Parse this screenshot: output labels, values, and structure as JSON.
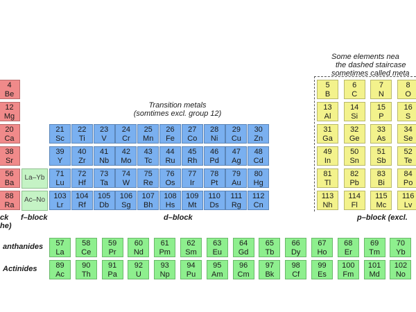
{
  "labels": {
    "transition_line1": "Transition metals",
    "transition_line2": "(somtimes excl. group 12)",
    "metalloid_line1": "Some elements nea",
    "metalloid_line2": "the dashed staircase",
    "metalloid_line3": "sometimes called meta",
    "block_s_line1": "ck",
    "block_s_line2": "he)",
    "block_f": "f–block",
    "block_d": "d–block",
    "block_p": "p–block (excl.",
    "lanthanides": "anthanides",
    "actinides": "Actinides",
    "ref_la": "La–Yb",
    "ref_ac": "Ac–No"
  },
  "s_block": [
    {
      "n": "4",
      "s": "Be"
    },
    {
      "n": "12",
      "s": "Mg"
    },
    {
      "n": "20",
      "s": "Ca"
    },
    {
      "n": "38",
      "s": "Sr"
    },
    {
      "n": "56",
      "s": "Ba"
    },
    {
      "n": "88",
      "s": "Ra"
    }
  ],
  "d_block": [
    [
      {
        "n": "21",
        "s": "Sc"
      },
      {
        "n": "22",
        "s": "Ti"
      },
      {
        "n": "23",
        "s": "V"
      },
      {
        "n": "24",
        "s": "Cr"
      },
      {
        "n": "25",
        "s": "Mn"
      },
      {
        "n": "26",
        "s": "Fe"
      },
      {
        "n": "27",
        "s": "Co"
      },
      {
        "n": "28",
        "s": "Ni"
      },
      {
        "n": "29",
        "s": "Cu"
      },
      {
        "n": "30",
        "s": "Zn"
      }
    ],
    [
      {
        "n": "39",
        "s": "Y"
      },
      {
        "n": "40",
        "s": "Zr"
      },
      {
        "n": "41",
        "s": "Nb"
      },
      {
        "n": "42",
        "s": "Mo"
      },
      {
        "n": "43",
        "s": "Tc"
      },
      {
        "n": "44",
        "s": "Ru"
      },
      {
        "n": "45",
        "s": "Rh"
      },
      {
        "n": "46",
        "s": "Pd"
      },
      {
        "n": "47",
        "s": "Ag"
      },
      {
        "n": "48",
        "s": "Cd"
      }
    ],
    [
      {
        "n": "71",
        "s": "Lu"
      },
      {
        "n": "72",
        "s": "Hf"
      },
      {
        "n": "73",
        "s": "Ta"
      },
      {
        "n": "74",
        "s": "W"
      },
      {
        "n": "75",
        "s": "Re"
      },
      {
        "n": "76",
        "s": "Os"
      },
      {
        "n": "77",
        "s": "Ir"
      },
      {
        "n": "78",
        "s": "Pt"
      },
      {
        "n": "79",
        "s": "Au"
      },
      {
        "n": "80",
        "s": "Hg"
      }
    ],
    [
      {
        "n": "103",
        "s": "Lr"
      },
      {
        "n": "104",
        "s": "Rf"
      },
      {
        "n": "105",
        "s": "Db"
      },
      {
        "n": "106",
        "s": "Sg"
      },
      {
        "n": "107",
        "s": "Bh"
      },
      {
        "n": "108",
        "s": "Hs"
      },
      {
        "n": "109",
        "s": "Mt"
      },
      {
        "n": "110",
        "s": "Ds"
      },
      {
        "n": "111",
        "s": "Rg"
      },
      {
        "n": "112",
        "s": "Cn"
      }
    ]
  ],
  "p_block": [
    [
      {
        "n": "5",
        "s": "B"
      },
      {
        "n": "6",
        "s": "C"
      },
      {
        "n": "7",
        "s": "N"
      },
      {
        "n": "8",
        "s": "O"
      }
    ],
    [
      {
        "n": "13",
        "s": "Al"
      },
      {
        "n": "14",
        "s": "Si"
      },
      {
        "n": "15",
        "s": "P"
      },
      {
        "n": "16",
        "s": "S"
      }
    ],
    [
      {
        "n": "31",
        "s": "Ga"
      },
      {
        "n": "32",
        "s": "Ge"
      },
      {
        "n": "33",
        "s": "As"
      },
      {
        "n": "34",
        "s": "Se"
      }
    ],
    [
      {
        "n": "49",
        "s": "In"
      },
      {
        "n": "50",
        "s": "Sn"
      },
      {
        "n": "51",
        "s": "Sb"
      },
      {
        "n": "52",
        "s": "Te"
      }
    ],
    [
      {
        "n": "81",
        "s": "Tl"
      },
      {
        "n": "82",
        "s": "Pb"
      },
      {
        "n": "83",
        "s": "Bi"
      },
      {
        "n": "84",
        "s": "Po"
      }
    ],
    [
      {
        "n": "113",
        "s": "Nh"
      },
      {
        "n": "114",
        "s": "Fl"
      },
      {
        "n": "115",
        "s": "Mc"
      },
      {
        "n": "116",
        "s": "Lv"
      }
    ]
  ],
  "lanthanides": [
    {
      "n": "57",
      "s": "La"
    },
    {
      "n": "58",
      "s": "Ce"
    },
    {
      "n": "59",
      "s": "Pr"
    },
    {
      "n": "60",
      "s": "Nd"
    },
    {
      "n": "61",
      "s": "Pm"
    },
    {
      "n": "62",
      "s": "Sm"
    },
    {
      "n": "63",
      "s": "Eu"
    },
    {
      "n": "64",
      "s": "Gd"
    },
    {
      "n": "65",
      "s": "Tb"
    },
    {
      "n": "66",
      "s": "Dy"
    },
    {
      "n": "67",
      "s": "Ho"
    },
    {
      "n": "68",
      "s": "Er"
    },
    {
      "n": "69",
      "s": "Tm"
    },
    {
      "n": "70",
      "s": "Yb"
    }
  ],
  "actinides": [
    {
      "n": "89",
      "s": "Ac"
    },
    {
      "n": "90",
      "s": "Th"
    },
    {
      "n": "91",
      "s": "Pa"
    },
    {
      "n": "92",
      "s": "U"
    },
    {
      "n": "93",
      "s": "Np"
    },
    {
      "n": "94",
      "s": "Pu"
    },
    {
      "n": "95",
      "s": "Am"
    },
    {
      "n": "96",
      "s": "Cm"
    },
    {
      "n": "97",
      "s": "Bk"
    },
    {
      "n": "98",
      "s": "Cf"
    },
    {
      "n": "99",
      "s": "Es"
    },
    {
      "n": "100",
      "s": "Fm"
    },
    {
      "n": "101",
      "s": "Md"
    },
    {
      "n": "102",
      "s": "No"
    }
  ],
  "colors": {
    "s_block": "#f08a8a",
    "d_block": "#7ab0f0",
    "p_block": "#f3f28c",
    "f_block": "#8eef8e",
    "f_reference": "#c5f3c5"
  }
}
